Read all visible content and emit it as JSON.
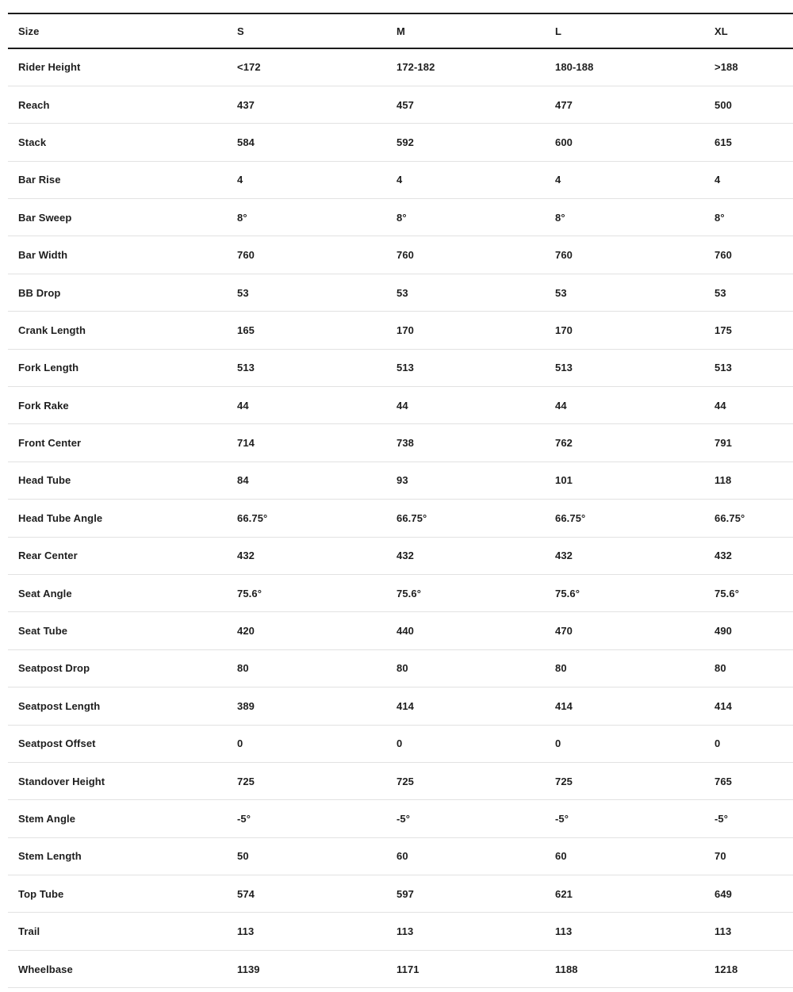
{
  "colors": {
    "background": "#ffffff",
    "text": "#1e1e1e",
    "heavy_rule": "#1c1c1c",
    "light_rule": "#e2e2e2"
  },
  "table": {
    "header": {
      "label": "Size",
      "columns": [
        "S",
        "M",
        "L",
        "XL"
      ]
    },
    "rows": [
      {
        "label": "Rider Height",
        "values": [
          "<172",
          "172-182",
          "180-188",
          ">188"
        ]
      },
      {
        "label": "Reach",
        "values": [
          "437",
          "457",
          "477",
          "500"
        ]
      },
      {
        "label": "Stack",
        "values": [
          "584",
          "592",
          "600",
          "615"
        ]
      },
      {
        "label": "Bar Rise",
        "values": [
          "4",
          "4",
          "4",
          "4"
        ]
      },
      {
        "label": "Bar Sweep",
        "values": [
          "8°",
          "8°",
          "8°",
          "8°"
        ]
      },
      {
        "label": "Bar Width",
        "values": [
          "760",
          "760",
          "760",
          "760"
        ]
      },
      {
        "label": "BB Drop",
        "values": [
          "53",
          "53",
          "53",
          "53"
        ]
      },
      {
        "label": "Crank Length",
        "values": [
          "165",
          "170",
          "170",
          "175"
        ]
      },
      {
        "label": "Fork Length",
        "values": [
          "513",
          "513",
          "513",
          "513"
        ]
      },
      {
        "label": "Fork Rake",
        "values": [
          "44",
          "44",
          "44",
          "44"
        ]
      },
      {
        "label": "Front Center",
        "values": [
          "714",
          "738",
          "762",
          "791"
        ]
      },
      {
        "label": "Head Tube",
        "values": [
          "84",
          "93",
          "101",
          "118"
        ]
      },
      {
        "label": "Head Tube Angle",
        "values": [
          "66.75°",
          "66.75°",
          "66.75°",
          "66.75°"
        ]
      },
      {
        "label": "Rear Center",
        "values": [
          "432",
          "432",
          "432",
          "432"
        ]
      },
      {
        "label": "Seat Angle",
        "values": [
          "75.6°",
          "75.6°",
          "75.6°",
          "75.6°"
        ]
      },
      {
        "label": "Seat Tube",
        "values": [
          "420",
          "440",
          "470",
          "490"
        ]
      },
      {
        "label": "Seatpost Drop",
        "values": [
          "80",
          "80",
          "80",
          "80"
        ]
      },
      {
        "label": "Seatpost Length",
        "values": [
          "389",
          "414",
          "414",
          "414"
        ]
      },
      {
        "label": "Seatpost Offset",
        "values": [
          "0",
          "0",
          "0",
          "0"
        ]
      },
      {
        "label": "Standover Height",
        "values": [
          "725",
          "725",
          "725",
          "765"
        ]
      },
      {
        "label": "Stem Angle",
        "values": [
          "-5°",
          "-5°",
          "-5°",
          "-5°"
        ]
      },
      {
        "label": "Stem Length",
        "values": [
          "50",
          "60",
          "60",
          "70"
        ]
      },
      {
        "label": "Top Tube",
        "values": [
          "574",
          "597",
          "621",
          "649"
        ]
      },
      {
        "label": "Trail",
        "values": [
          "113",
          "113",
          "113",
          "113"
        ]
      },
      {
        "label": "Wheelbase",
        "values": [
          "1139",
          "1171",
          "1188",
          "1218"
        ]
      }
    ]
  }
}
